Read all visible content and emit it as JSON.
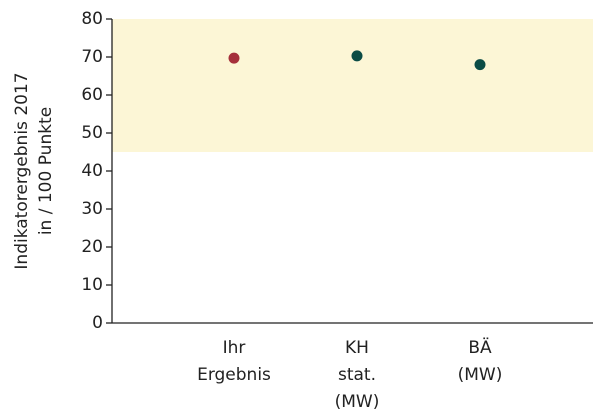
{
  "chart_data": {
    "type": "dot",
    "y_label": [
      "Indikatorergebnis 2017",
      "in / 100 Punkte"
    ],
    "categories": [
      [
        "Ihr",
        "Ergebnis"
      ],
      [
        "KH",
        "stat.",
        "(MW)"
      ],
      [
        "BÄ",
        "(MW)"
      ]
    ],
    "values": [
      69.7,
      70.3,
      68
    ],
    "colors": [
      "#a5303b",
      "#0b4c45"
    ],
    "point_colors": [
      0,
      1,
      1
    ],
    "band": {
      "from": 45,
      "to": 80,
      "color": "#fcf6d6"
    },
    "ylim": [
      0,
      80
    ],
    "yticks": [
      0,
      10,
      20,
      30,
      40,
      50,
      60,
      70,
      80
    ]
  }
}
